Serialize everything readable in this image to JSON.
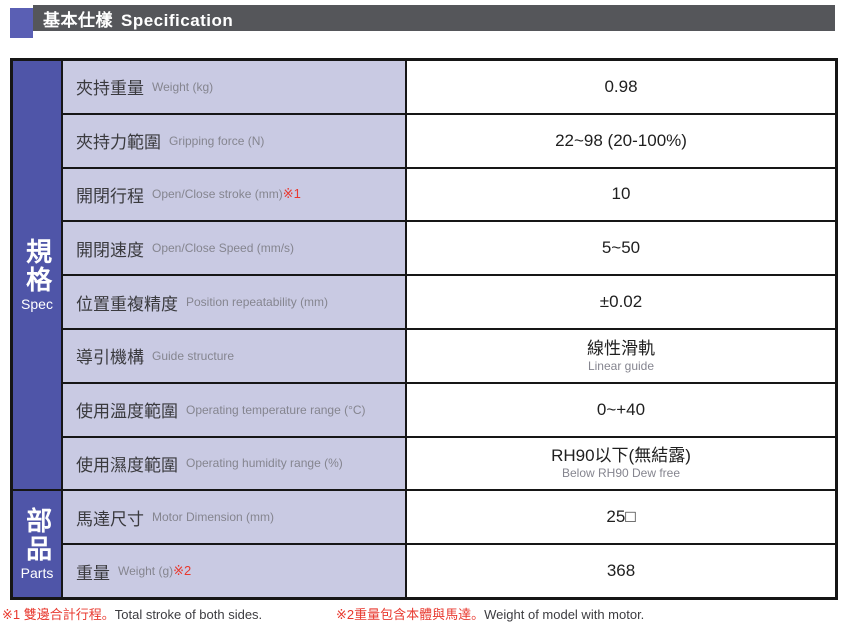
{
  "header": {
    "title_zh": "基本仕樣",
    "title_en": "Specification"
  },
  "table": {
    "sections": [
      {
        "zh": "規格",
        "en": "Spec",
        "rows": 8
      },
      {
        "zh": "部品",
        "en": "Parts",
        "rows": 2
      }
    ],
    "rows": [
      {
        "key": "weight-kg",
        "zh": "夾持重量",
        "en": "Weight (kg)",
        "note": "",
        "value": "0.98",
        "value_sub": ""
      },
      {
        "key": "gripping-force",
        "zh": "夾持力範圍",
        "en": "Gripping force (N)",
        "note": "",
        "value": "22~98 (20-100%)",
        "value_sub": ""
      },
      {
        "key": "stroke",
        "zh": "開閉行程",
        "en": "Open/Close stroke (mm)",
        "note": "※1",
        "value": "10",
        "value_sub": ""
      },
      {
        "key": "speed",
        "zh": "開閉速度",
        "en": "Open/Close Speed (mm/s)",
        "note": "",
        "value": "5~50",
        "value_sub": ""
      },
      {
        "key": "repeatability",
        "zh": "位置重複精度",
        "en": "Position repeatability (mm)",
        "note": "",
        "value": "±0.02",
        "value_sub": ""
      },
      {
        "key": "guide-structure",
        "zh": "導引機構",
        "en": "Guide structure",
        "note": "",
        "value": "線性滑軌",
        "value_sub": "Linear guide"
      },
      {
        "key": "temperature",
        "zh": "使用溫度範圍",
        "en": "Operating temperature range (°C)",
        "note": "",
        "value": "0~+40",
        "value_sub": ""
      },
      {
        "key": "humidity",
        "zh": "使用濕度範圍",
        "en": "Operating humidity range (%)",
        "note": "",
        "value": "RH90以下(無結露)",
        "value_sub": "Below RH90 Dew free"
      },
      {
        "key": "motor-dimension",
        "zh": "馬達尺寸",
        "en": "Motor Dimension (mm)",
        "note": "",
        "value": "25□",
        "value_sub": ""
      },
      {
        "key": "weight-g",
        "zh": "重量",
        "en": "Weight (g)",
        "note": "※2",
        "value": "368",
        "value_sub": ""
      }
    ]
  },
  "footnotes": [
    {
      "zh": "※1 雙邊合計行程。",
      "en": "Total stroke of both sides."
    },
    {
      "zh": "※2重量包含本體與馬達。",
      "en": "Weight of model with motor."
    }
  ],
  "colors": {
    "accent_indigo": "#4f55a8",
    "accent_square": "#5a5fb4",
    "header_gray": "#55565a",
    "label_lavender": "#c9cae3",
    "border_black": "#161616",
    "note_red": "#e8392f",
    "label_text": "#3a3a3e",
    "muted_text": "#85858f"
  }
}
